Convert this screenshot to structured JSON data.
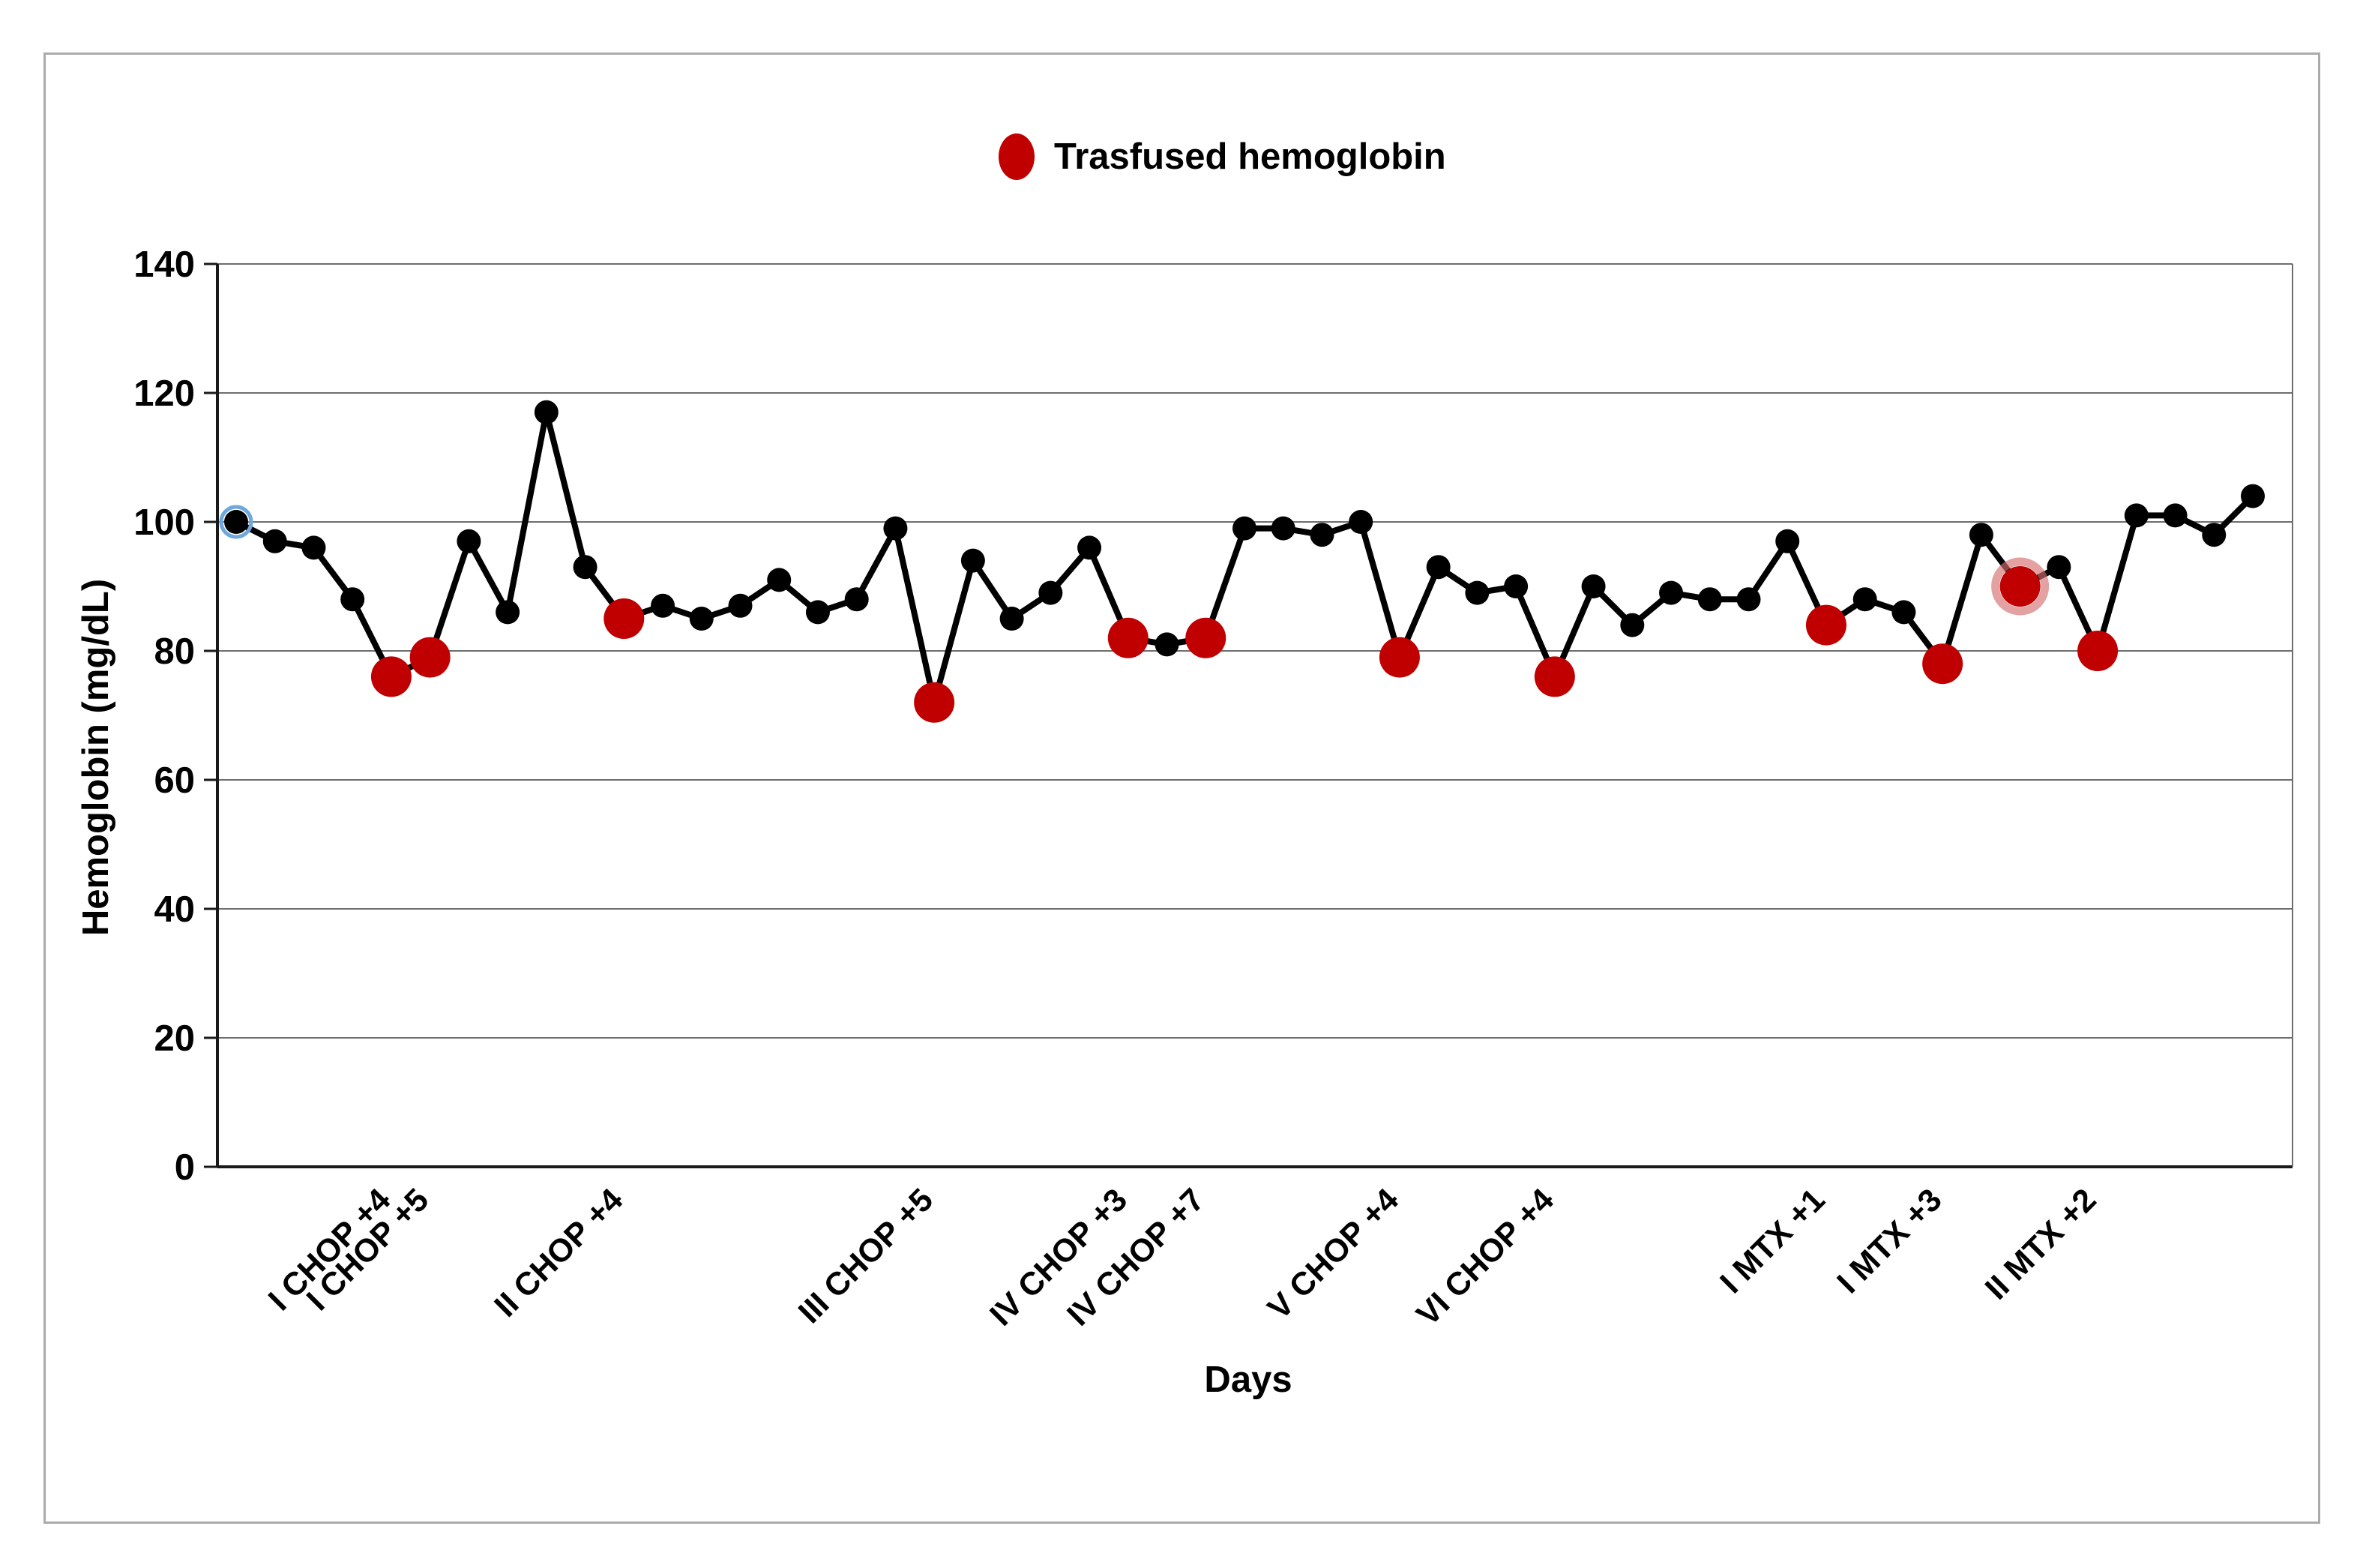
{
  "legend": {
    "label": "Trasfused hemoglobin"
  },
  "y_axis": {
    "title": "Hemoglobin (mg/dL)"
  },
  "x_axis": {
    "title": "Days"
  },
  "colors": {
    "line": "#000000",
    "marker": "#000000",
    "transfused": "#c00000",
    "selected_ring": "#6fa8dc",
    "halo_ring": "rgba(214,110,110,0.65)",
    "gridline": "#6e6e6e",
    "axis": "#1a1a1a"
  },
  "chart_data": {
    "type": "line",
    "title": "",
    "xlabel": "Days",
    "ylabel": "Hemoglobin (mg/dL)",
    "ylim": [
      0,
      140
    ],
    "yticks": [
      0,
      20,
      40,
      60,
      80,
      100,
      120,
      140
    ],
    "grid": true,
    "legend_position": "top-center",
    "series_name": "Hemoglobin",
    "transfused_series_name": "Trasfused hemoglobin",
    "points": [
      {
        "value": 100,
        "transfused": false,
        "selected": true
      },
      {
        "value": 97,
        "transfused": false
      },
      {
        "value": 96,
        "transfused": false
      },
      {
        "value": 88,
        "transfused": false
      },
      {
        "value": 76,
        "transfused": true,
        "label": "I CHOP +4"
      },
      {
        "value": 79,
        "transfused": true,
        "label": "I CHOP +5"
      },
      {
        "value": 97,
        "transfused": false
      },
      {
        "value": 86,
        "transfused": false
      },
      {
        "value": 117,
        "transfused": false
      },
      {
        "value": 93,
        "transfused": false
      },
      {
        "value": 85,
        "transfused": true,
        "label": "II CHOP +4"
      },
      {
        "value": 87,
        "transfused": false
      },
      {
        "value": 85,
        "transfused": false
      },
      {
        "value": 87,
        "transfused": false
      },
      {
        "value": 91,
        "transfused": false
      },
      {
        "value": 86,
        "transfused": false
      },
      {
        "value": 88,
        "transfused": false
      },
      {
        "value": 99,
        "transfused": false
      },
      {
        "value": 72,
        "transfused": true,
        "label": "III CHOP +5"
      },
      {
        "value": 94,
        "transfused": false
      },
      {
        "value": 85,
        "transfused": false
      },
      {
        "value": 89,
        "transfused": false
      },
      {
        "value": 96,
        "transfused": false
      },
      {
        "value": 82,
        "transfused": true,
        "label": "IV CHOP +3"
      },
      {
        "value": 81,
        "transfused": false
      },
      {
        "value": 82,
        "transfused": true,
        "label": "IV CHOP +7"
      },
      {
        "value": 99,
        "transfused": false
      },
      {
        "value": 99,
        "transfused": false
      },
      {
        "value": 98,
        "transfused": false
      },
      {
        "value": 100,
        "transfused": false
      },
      {
        "value": 79,
        "transfused": true,
        "label": "V CHOP +4"
      },
      {
        "value": 93,
        "transfused": false
      },
      {
        "value": 89,
        "transfused": false
      },
      {
        "value": 90,
        "transfused": false
      },
      {
        "value": 76,
        "transfused": true,
        "label": "VI CHOP +4"
      },
      {
        "value": 90,
        "transfused": false
      },
      {
        "value": 84,
        "transfused": false
      },
      {
        "value": 89,
        "transfused": false
      },
      {
        "value": 88,
        "transfused": false
      },
      {
        "value": 88,
        "transfused": false
      },
      {
        "value": 97,
        "transfused": false
      },
      {
        "value": 84,
        "transfused": true,
        "label": "I MTX +1"
      },
      {
        "value": 88,
        "transfused": false
      },
      {
        "value": 86,
        "transfused": false
      },
      {
        "value": 78,
        "transfused": true,
        "label": "I MTX +3"
      },
      {
        "value": 98,
        "transfused": false
      },
      {
        "value": 90,
        "transfused": true,
        "halo": true
      },
      {
        "value": 93,
        "transfused": false
      },
      {
        "value": 80,
        "transfused": true,
        "label": "II MTX +2"
      },
      {
        "value": 101,
        "transfused": false
      },
      {
        "value": 101,
        "transfused": false
      },
      {
        "value": 98,
        "transfused": false
      },
      {
        "value": 104,
        "transfused": false
      }
    ]
  }
}
